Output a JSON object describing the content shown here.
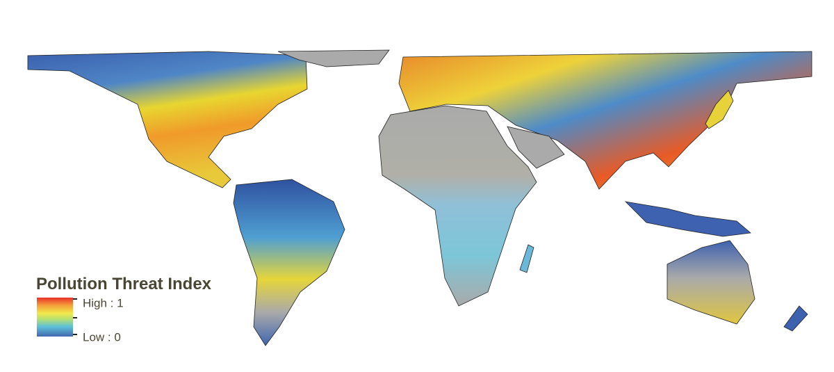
{
  "legend": {
    "title": "Pollution Threat Index",
    "high_label": "High : 1",
    "low_label": "Low : 0"
  }
}
